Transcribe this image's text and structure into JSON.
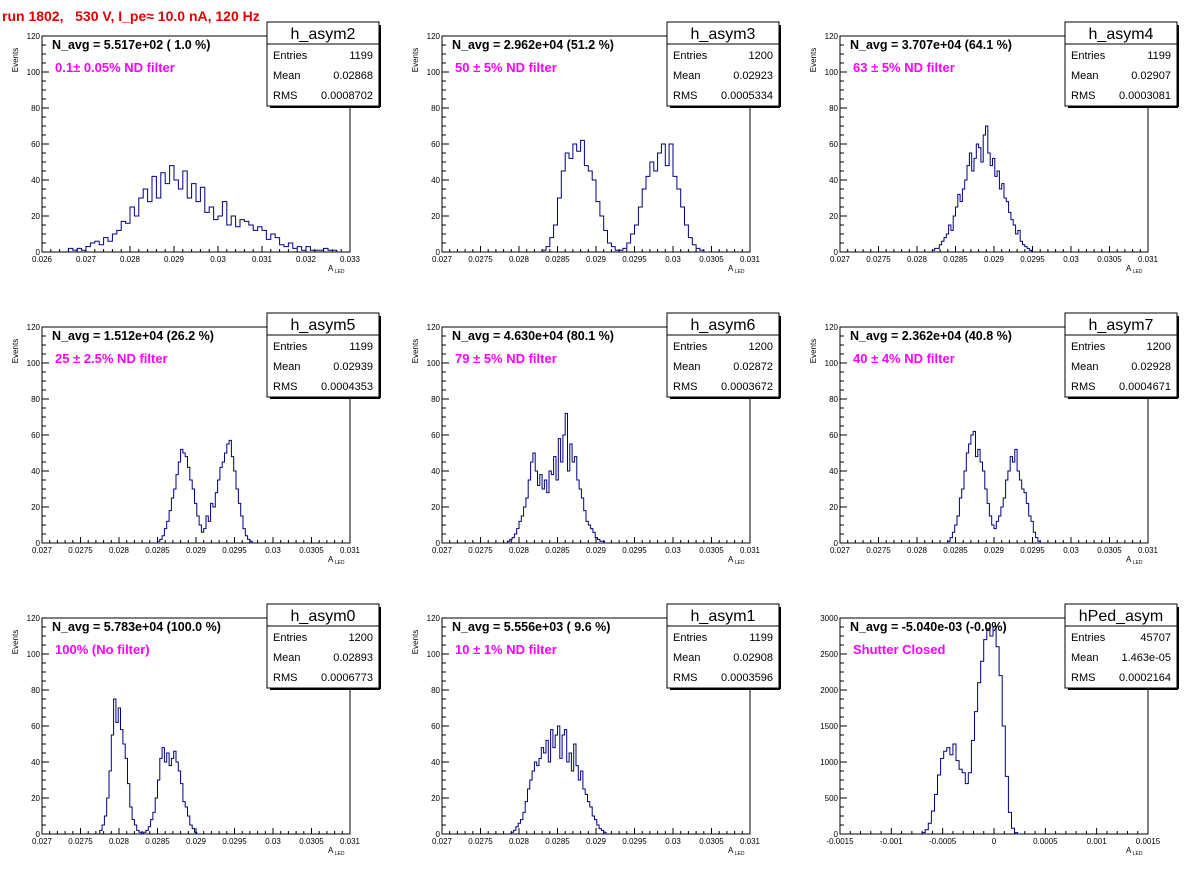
{
  "page_title": "run 1802,   530 V, I_pe≈ 10.0 nA, 120 Hz",
  "stat_labels": {
    "entries": "Entries",
    "mean": "Mean",
    "rms": "RMS"
  },
  "chart_data": [
    {
      "type": "histogram",
      "name": "h_asym2",
      "nav_text": "N_avg = 5.517e+02 ( 1.0 %)",
      "filter_text": "0.1± 0.05% ND filter",
      "entries": "1199",
      "mean": "0.02868",
      "rms": "0.0008702",
      "xlabel": "A",
      "xlabel_sub": "LED",
      "ylabel": "Events",
      "xlim": [
        0.026,
        0.033
      ],
      "ylim": [
        0,
        120
      ],
      "xticks": [
        0.026,
        0.027,
        0.028,
        0.029,
        0.03,
        0.031,
        0.032,
        0.033
      ],
      "xtick_labels": [
        "0.026",
        "0.027",
        "0.028",
        "0.029",
        "0.03",
        "0.031",
        "0.032",
        "0.033"
      ],
      "yticks": [
        0,
        20,
        40,
        60,
        80,
        100,
        120
      ],
      "ytick_labels": [
        "0",
        "20",
        "40",
        "60",
        "80",
        "100",
        "120"
      ],
      "bins_start": 0.0266,
      "bin_width": 0.0001,
      "counts": [
        2,
        1,
        2,
        1,
        3,
        5,
        6,
        4,
        8,
        6,
        10,
        12,
        17,
        16,
        25,
        20,
        30,
        35,
        28,
        42,
        30,
        44,
        38,
        48,
        40,
        35,
        45,
        30,
        38,
        28,
        36,
        22,
        25,
        18,
        20,
        28,
        15,
        20,
        14,
        18,
        17,
        15,
        12,
        14,
        12,
        7,
        10,
        8,
        4,
        3,
        5,
        2,
        3,
        1,
        3,
        1,
        1,
        1,
        2,
        1,
        1,
        0
      ]
    },
    {
      "type": "histogram",
      "name": "h_asym3",
      "nav_text": "N_avg = 2.962e+04 (51.2 %)",
      "filter_text": "50 ± 5% ND filter",
      "entries": "1200",
      "mean": "0.02923",
      "rms": "0.0005334",
      "xlabel": "A",
      "xlabel_sub": "LED",
      "ylabel": "Events",
      "xlim": [
        0.027,
        0.031
      ],
      "ylim": [
        0,
        120
      ],
      "xticks": [
        0.027,
        0.0275,
        0.028,
        0.0285,
        0.029,
        0.0295,
        0.03,
        0.0305,
        0.031
      ],
      "xtick_labels": [
        "0.027",
        "0.0275",
        "0.028",
        "0.0285",
        "0.029",
        "0.0295",
        "0.03",
        "0.0305",
        "0.031"
      ],
      "yticks": [
        0,
        20,
        40,
        60,
        80,
        100,
        120
      ],
      "ytick_labels": [
        "0",
        "20",
        "40",
        "60",
        "80",
        "100",
        "120"
      ],
      "bins_start": 0.0283,
      "bin_width": 5e-05,
      "counts": [
        1,
        3,
        8,
        15,
        30,
        45,
        55,
        52,
        60,
        56,
        62,
        48,
        45,
        40,
        28,
        20,
        12,
        5,
        3,
        1,
        1,
        2,
        5,
        10,
        15,
        25,
        35,
        42,
        50,
        45,
        55,
        60,
        48,
        60,
        42,
        35,
        25,
        15,
        8,
        4,
        2,
        1,
        0
      ]
    },
    {
      "type": "histogram",
      "name": "h_asym4",
      "nav_text": "N_avg = 3.707e+04 (64.1 %)",
      "filter_text": "63 ± 5% ND filter",
      "entries": "1199",
      "mean": "0.02907",
      "rms": "0.0003081",
      "xlabel": "A",
      "xlabel_sub": "LED",
      "ylabel": "Events",
      "xlim": [
        0.027,
        0.031
      ],
      "ylim": [
        0,
        120
      ],
      "xticks": [
        0.027,
        0.0275,
        0.028,
        0.0285,
        0.029,
        0.0295,
        0.03,
        0.0305,
        0.031
      ],
      "xtick_labels": [
        "0.027",
        "0.0275",
        "0.028",
        "0.0285",
        "0.029",
        "0.0295",
        "0.03",
        "0.0305",
        "0.031"
      ],
      "yticks": [
        0,
        20,
        40,
        60,
        80,
        100,
        120
      ],
      "ytick_labels": [
        "0",
        "20",
        "40",
        "60",
        "80",
        "100",
        "120"
      ],
      "bins_start": 0.0282,
      "bin_width": 3e-05,
      "counts": [
        1,
        2,
        2,
        4,
        6,
        8,
        10,
        15,
        12,
        20,
        25,
        32,
        28,
        35,
        40,
        48,
        55,
        45,
        52,
        60,
        58,
        50,
        65,
        70,
        55,
        48,
        52,
        42,
        45,
        35,
        38,
        30,
        28,
        22,
        18,
        15,
        10,
        12,
        6,
        4,
        3,
        2,
        1,
        0
      ]
    },
    {
      "type": "histogram",
      "name": "h_asym5",
      "nav_text": "N_avg = 1.512e+04 (26.2 %)",
      "filter_text": "25 ± 2.5% ND filter",
      "entries": "1199",
      "mean": "0.02939",
      "rms": "0.0004353",
      "xlabel": "A",
      "xlabel_sub": "LED",
      "ylabel": "Events",
      "xlim": [
        0.027,
        0.031
      ],
      "ylim": [
        0,
        120
      ],
      "xticks": [
        0.027,
        0.0275,
        0.028,
        0.0285,
        0.029,
        0.0295,
        0.03,
        0.0305,
        0.031
      ],
      "xtick_labels": [
        "0.027",
        "0.0275",
        "0.028",
        "0.0285",
        "0.029",
        "0.0295",
        "0.03",
        "0.0305",
        "0.031"
      ],
      "yticks": [
        0,
        20,
        40,
        60,
        80,
        100,
        120
      ],
      "ytick_labels": [
        "0",
        "20",
        "40",
        "60",
        "80",
        "100",
        "120"
      ],
      "bins_start": 0.0285,
      "bin_width": 3e-05,
      "counts": [
        1,
        2,
        4,
        8,
        12,
        18,
        25,
        30,
        38,
        45,
        52,
        50,
        48,
        42,
        35,
        30,
        22,
        15,
        10,
        6,
        8,
        15,
        12,
        22,
        20,
        28,
        35,
        42,
        45,
        50,
        55,
        57,
        48,
        40,
        30,
        22,
        15,
        8,
        4,
        2,
        1,
        0
      ]
    },
    {
      "type": "histogram",
      "name": "h_asym6",
      "nav_text": "N_avg = 4.630e+04 (80.1 %)",
      "filter_text": "79 ± 5% ND filter",
      "entries": "1200",
      "mean": "0.02872",
      "rms": "0.0003672",
      "xlabel": "A",
      "xlabel_sub": "LED",
      "ylabel": "Events",
      "xlim": [
        0.027,
        0.031
      ],
      "ylim": [
        0,
        120
      ],
      "xticks": [
        0.027,
        0.0275,
        0.028,
        0.0285,
        0.029,
        0.0295,
        0.03,
        0.0305,
        0.031
      ],
      "xtick_labels": [
        "0.027",
        "0.0275",
        "0.028",
        "0.0285",
        "0.029",
        "0.0295",
        "0.03",
        "0.0305",
        "0.031"
      ],
      "yticks": [
        0,
        20,
        40,
        60,
        80,
        100,
        120
      ],
      "ytick_labels": [
        "0",
        "20",
        "40",
        "60",
        "80",
        "100",
        "120"
      ],
      "bins_start": 0.02785,
      "bin_width": 3e-05,
      "counts": [
        1,
        2,
        3,
        5,
        8,
        12,
        15,
        20,
        25,
        35,
        45,
        50,
        40,
        32,
        38,
        30,
        35,
        28,
        40,
        38,
        48,
        35,
        58,
        45,
        60,
        72,
        40,
        55,
        45,
        48,
        35,
        30,
        25,
        18,
        12,
        10,
        8,
        6,
        3,
        2,
        1,
        1,
        0
      ]
    },
    {
      "type": "histogram",
      "name": "h_asym7",
      "nav_text": "N_avg = 2.362e+04 (40.8 %)",
      "filter_text": "40 ± 4% ND filter",
      "entries": "1200",
      "mean": "0.02928",
      "rms": "0.0004671",
      "xlabel": "A",
      "xlabel_sub": "LED",
      "ylabel": "Events",
      "xlim": [
        0.027,
        0.031
      ],
      "ylim": [
        0,
        120
      ],
      "xticks": [
        0.027,
        0.0275,
        0.028,
        0.0285,
        0.029,
        0.0295,
        0.03,
        0.0305,
        0.031
      ],
      "xtick_labels": [
        "0.027",
        "0.0275",
        "0.028",
        "0.0285",
        "0.029",
        "0.0295",
        "0.03",
        "0.0305",
        "0.031"
      ],
      "yticks": [
        0,
        20,
        40,
        60,
        80,
        100,
        120
      ],
      "ytick_labels": [
        "0",
        "20",
        "40",
        "60",
        "80",
        "100",
        "120"
      ],
      "bins_start": 0.0284,
      "bin_width": 3e-05,
      "counts": [
        1,
        3,
        6,
        10,
        15,
        25,
        30,
        40,
        50,
        55,
        60,
        62,
        48,
        52,
        45,
        40,
        30,
        22,
        15,
        10,
        8,
        12,
        15,
        20,
        25,
        35,
        40,
        48,
        45,
        52,
        40,
        35,
        30,
        28,
        22,
        15,
        12,
        6,
        3,
        1,
        0
      ]
    },
    {
      "type": "histogram",
      "name": "h_asym0",
      "nav_text": "N_avg = 5.783e+04 (100.0 %)",
      "filter_text": "100% (No filter)",
      "entries": "1200",
      "mean": "0.02893",
      "rms": "0.0006773",
      "xlabel": "A",
      "xlabel_sub": "LED",
      "ylabel": "Events",
      "xlim": [
        0.027,
        0.031
      ],
      "ylim": [
        0,
        120
      ],
      "xticks": [
        0.027,
        0.0275,
        0.028,
        0.0285,
        0.029,
        0.0295,
        0.03,
        0.0305,
        0.031
      ],
      "xtick_labels": [
        "0.027",
        "0.0275",
        "0.028",
        "0.0285",
        "0.029",
        "0.0295",
        "0.03",
        "0.0305",
        "0.031"
      ],
      "yticks": [
        0,
        20,
        40,
        60,
        80,
        100,
        120
      ],
      "ytick_labels": [
        "0",
        "20",
        "40",
        "60",
        "80",
        "100",
        "120"
      ],
      "bins_start": 0.02775,
      "bin_width": 3e-05,
      "counts": [
        2,
        5,
        10,
        20,
        35,
        55,
        75,
        62,
        70,
        58,
        50,
        42,
        28,
        15,
        8,
        5,
        2,
        1,
        0,
        1,
        2,
        4,
        8,
        12,
        20,
        30,
        42,
        48,
        40,
        45,
        38,
        42,
        46,
        40,
        35,
        28,
        18,
        15,
        10,
        5,
        3,
        1,
        0
      ]
    },
    {
      "type": "histogram",
      "name": "h_asym1",
      "nav_text": "N_avg = 5.556e+03 ( 9.6 %)",
      "filter_text": "10 ± 1% ND filter",
      "entries": "1199",
      "mean": "0.02908",
      "rms": "0.0003596",
      "xlabel": "A",
      "xlabel_sub": "LED",
      "ylabel": "Events",
      "xlim": [
        0.027,
        0.031
      ],
      "ylim": [
        0,
        120
      ],
      "xticks": [
        0.027,
        0.0275,
        0.028,
        0.0285,
        0.029,
        0.0295,
        0.03,
        0.0305,
        0.031
      ],
      "xtick_labels": [
        "0.027",
        "0.0275",
        "0.028",
        "0.0285",
        "0.029",
        "0.0295",
        "0.03",
        "0.0305",
        "0.031"
      ],
      "yticks": [
        0,
        20,
        40,
        60,
        80,
        100,
        120
      ],
      "ytick_labels": [
        "0",
        "20",
        "40",
        "60",
        "80",
        "100",
        "120"
      ],
      "bins_start": 0.0279,
      "bin_width": 3e-05,
      "counts": [
        1,
        2,
        4,
        6,
        8,
        12,
        18,
        25,
        30,
        35,
        40,
        38,
        42,
        48,
        45,
        52,
        40,
        58,
        48,
        55,
        60,
        42,
        55,
        58,
        40,
        45,
        35,
        50,
        38,
        30,
        35,
        25,
        22,
        18,
        15,
        10,
        8,
        5,
        3,
        2,
        1,
        0
      ]
    },
    {
      "type": "histogram",
      "name": "hPed_asym",
      "nav_text": "N_avg = -5.040e-03 (-0.0%)",
      "filter_text": "Shutter Closed",
      "entries": "45707",
      "mean": "1.463e-05",
      "rms": "0.0002164",
      "xlabel": "A",
      "xlabel_sub": "LED",
      "ylabel": "",
      "xlim": [
        -0.0015,
        0.0015
      ],
      "ylim": [
        0,
        3000
      ],
      "xticks": [
        -0.0015,
        -0.001,
        -0.0005,
        0,
        0.0005,
        0.001,
        0.0015
      ],
      "xtick_labels": [
        "-0.0015",
        "-0.001",
        "-0.0005",
        "0",
        "0.0005",
        "0.001",
        "0.0015"
      ],
      "yticks": [
        0,
        500,
        1000,
        1500,
        2000,
        2500,
        3000
      ],
      "ytick_labels": [
        "0",
        "500",
        "1000",
        "1500",
        "2000",
        "2500",
        "3000"
      ],
      "bins_start": -0.0007,
      "bin_width": 3e-05,
      "counts": [
        20,
        60,
        150,
        320,
        550,
        820,
        1050,
        1150,
        1200,
        1100,
        1250,
        1020,
        900,
        850,
        700,
        850,
        1300,
        1700,
        2100,
        2400,
        2700,
        2850,
        2750,
        2880,
        2600,
        2200,
        1500,
        800,
        300,
        80,
        20,
        0
      ]
    }
  ]
}
